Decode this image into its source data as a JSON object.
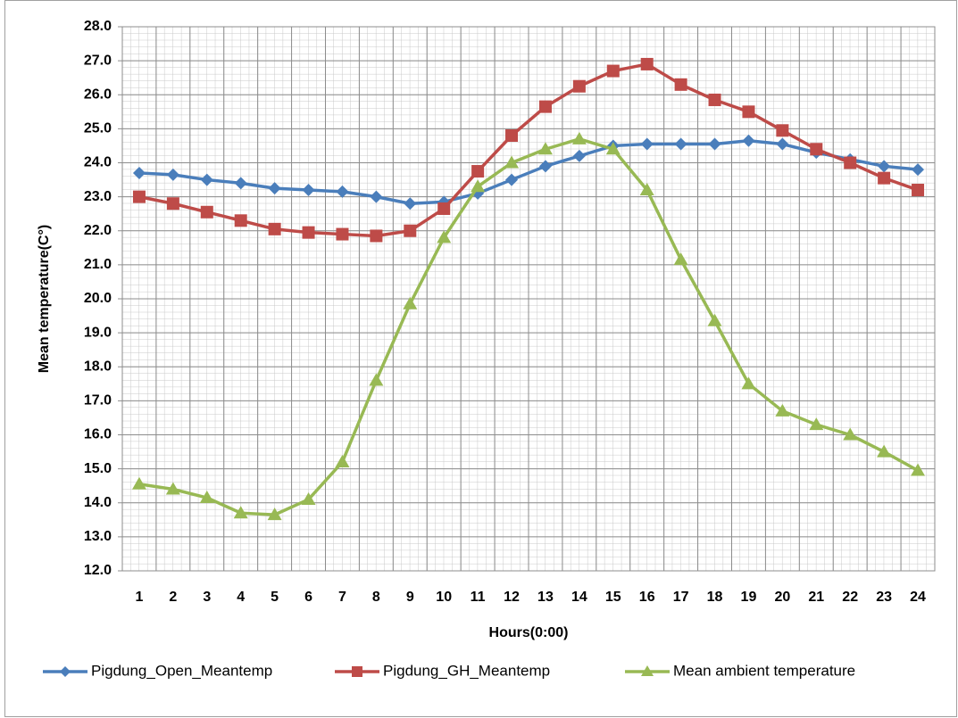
{
  "chart_data": {
    "type": "line",
    "y_label": "Mean temperature(C°)",
    "x_label": "Hours(0:00)",
    "categories": [
      "1",
      "2",
      "3",
      "4",
      "5",
      "6",
      "7",
      "8",
      "9",
      "10",
      "11",
      "12",
      "13",
      "14",
      "15",
      "16",
      "17",
      "18",
      "19",
      "20",
      "21",
      "22",
      "23",
      "24"
    ],
    "series": [
      {
        "name": "Pigdung_Open_Meantemp",
        "color": "#4a7ebb",
        "marker": "diamond",
        "values": [
          23.7,
          23.65,
          23.5,
          23.4,
          23.25,
          23.2,
          23.15,
          23.0,
          22.8,
          22.85,
          23.1,
          23.5,
          23.9,
          24.2,
          24.5,
          24.55,
          24.55,
          24.55,
          24.65,
          24.55,
          24.3,
          24.1,
          23.9,
          23.8
        ]
      },
      {
        "name": "Pigdung_GH_Meantemp",
        "color": "#be4b48",
        "marker": "square",
        "values": [
          23.0,
          22.8,
          22.55,
          22.3,
          22.05,
          21.95,
          21.9,
          21.85,
          22.0,
          22.65,
          23.75,
          24.8,
          25.65,
          26.25,
          26.7,
          26.9,
          26.3,
          25.85,
          25.5,
          24.95,
          24.4,
          24.0,
          23.55,
          23.2
        ]
      },
      {
        "name": "Mean ambient temperature",
        "color": "#98b954",
        "marker": "triangle",
        "values": [
          14.55,
          14.4,
          14.15,
          13.7,
          13.65,
          14.1,
          15.2,
          17.6,
          19.85,
          21.8,
          23.3,
          24.0,
          24.4,
          24.7,
          24.4,
          23.2,
          21.15,
          19.35,
          17.5,
          16.7,
          16.3,
          16.0,
          15.5,
          14.95
        ]
      }
    ],
    "ylim": [
      12,
      28
    ],
    "yticks": [
      {
        "value": 12,
        "label": "12.0"
      },
      {
        "value": 13,
        "label": "13.0"
      },
      {
        "value": 14,
        "label": "14.0"
      },
      {
        "value": 15,
        "label": "15.0"
      },
      {
        "value": 16,
        "label": "16.0"
      },
      {
        "value": 17,
        "label": "17.0"
      },
      {
        "value": 18,
        "label": "18.0"
      },
      {
        "value": 19,
        "label": "19.0"
      },
      {
        "value": 20,
        "label": "20.0"
      },
      {
        "value": 21,
        "label": "21.0"
      },
      {
        "value": 22,
        "label": "22.0"
      },
      {
        "value": 23,
        "label": "23.0"
      },
      {
        "value": 24,
        "label": "24.0"
      },
      {
        "value": 25,
        "label": "25.0"
      },
      {
        "value": 26,
        "label": "26.0"
      },
      {
        "value": 27,
        "label": "27.0"
      },
      {
        "value": 28,
        "label": "28.0"
      }
    ],
    "grid": true,
    "legend": "bottom"
  }
}
